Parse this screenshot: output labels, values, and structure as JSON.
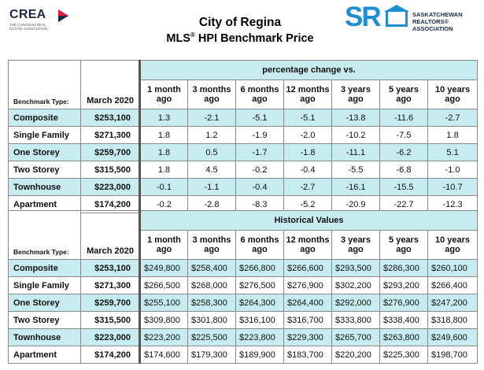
{
  "header": {
    "crea_word": "CREA",
    "crea_sub": "The Canadian Real Estate Association",
    "title": "City of Regina",
    "subtitle_pre": "MLS",
    "subtitle_reg": "®",
    "subtitle_post": " HPI Benchmark Price",
    "sr_letters": "SR",
    "sr_line1": "SASKATCHEWAN",
    "sr_line2": "REALTORS®",
    "sr_line3": "ASSOCIATION"
  },
  "colors": {
    "band": "#c6ecef",
    "brand_blue": "#1d8fd3",
    "crea_red": "#e31b3d"
  },
  "columns": {
    "type_label": "Benchmark Type:",
    "price_label": "March 2020",
    "periods": [
      [
        "1 month",
        "ago"
      ],
      [
        "3 months",
        "ago"
      ],
      [
        "6 months",
        "ago"
      ],
      [
        "12 months",
        "ago"
      ],
      [
        "3 years",
        "ago"
      ],
      [
        "5 years",
        "ago"
      ],
      [
        "10 years",
        "ago"
      ]
    ]
  },
  "pct_table": {
    "heading": "percentage change vs.",
    "rows": [
      {
        "name": "Composite",
        "price": "$253,100",
        "values": [
          "1.3",
          "-2.1",
          "-5.1",
          "-5.1",
          "-13.8",
          "-11.6",
          "-2.7"
        ]
      },
      {
        "name": "Single Family",
        "price": "$271,300",
        "values": [
          "1.8",
          "1.2",
          "-1.9",
          "-2.0",
          "-10.2",
          "-7.5",
          "1.8"
        ]
      },
      {
        "name": "One Storey",
        "price": "$259,700",
        "values": [
          "1.8",
          "0.5",
          "-1.7",
          "-1.8",
          "-11.1",
          "-6.2",
          "5.1"
        ]
      },
      {
        "name": "Two Storey",
        "price": "$315,500",
        "values": [
          "1.8",
          "4.5",
          "-0.2",
          "-0.4",
          "-5.5",
          "-6.8",
          "-1.0"
        ]
      },
      {
        "name": "Townhouse",
        "price": "$223,000",
        "values": [
          "-0.1",
          "-1.1",
          "-0.4",
          "-2.7",
          "-16.1",
          "-15.5",
          "-10.7"
        ]
      },
      {
        "name": "Apartment",
        "price": "$174,200",
        "values": [
          "-0.2",
          "-2.8",
          "-8.3",
          "-5.2",
          "-20.9",
          "-22.7",
          "-12.3"
        ]
      }
    ]
  },
  "hist_table": {
    "heading": "Historical Values",
    "rows": [
      {
        "name": "Composite",
        "price": "$253,100",
        "values": [
          "$249,800",
          "$258,400",
          "$266,800",
          "$266,600",
          "$293,500",
          "$286,300",
          "$260,100"
        ]
      },
      {
        "name": "Single Family",
        "price": "$271,300",
        "values": [
          "$266,500",
          "$268,000",
          "$276,500",
          "$276,900",
          "$302,200",
          "$293,200",
          "$266,400"
        ]
      },
      {
        "name": "One Storey",
        "price": "$259,700",
        "values": [
          "$255,100",
          "$258,300",
          "$264,300",
          "$264,400",
          "$292,000",
          "$276,900",
          "$247,200"
        ]
      },
      {
        "name": "Two Storey",
        "price": "$315,500",
        "values": [
          "$309,800",
          "$301,800",
          "$316,100",
          "$316,700",
          "$333,800",
          "$338,400",
          "$318,800"
        ]
      },
      {
        "name": "Townhouse",
        "price": "$223,000",
        "values": [
          "$223,200",
          "$225,500",
          "$223,800",
          "$229,300",
          "$265,700",
          "$263,800",
          "$249,600"
        ]
      },
      {
        "name": "Apartment",
        "price": "$174,200",
        "values": [
          "$174,600",
          "$179,300",
          "$189,900",
          "$183,700",
          "$220,200",
          "$225,300",
          "$198,700"
        ]
      }
    ]
  }
}
